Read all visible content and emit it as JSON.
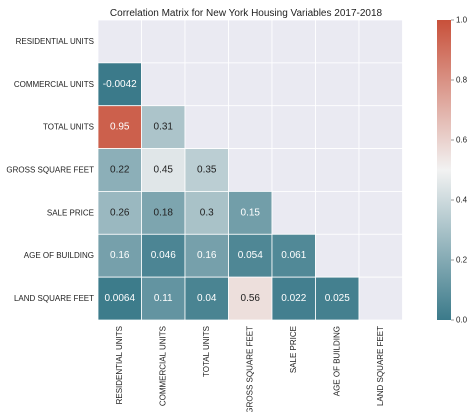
{
  "chart_data": {
    "type": "heatmap",
    "title": "Correlation Matrix for New York Housing Variables 2017-2018",
    "variables": [
      "RESIDENTIAL UNITS",
      "COMMERCIAL UNITS",
      "TOTAL UNITS",
      "GROSS SQUARE FEET",
      "SALE PRICE",
      "AGE OF BUILDING",
      "LAND SQUARE FEET"
    ],
    "lower_triangle": [
      [],
      [
        "-0.0042"
      ],
      [
        "0.95",
        "0.31"
      ],
      [
        "0.22",
        "0.45",
        "0.35"
      ],
      [
        "0.26",
        "0.18",
        "0.3",
        "0.15"
      ],
      [
        "0.16",
        "0.046",
        "0.16",
        "0.054",
        "0.061"
      ],
      [
        "0.0064",
        "0.11",
        "0.04",
        "0.56",
        "0.022",
        "0.025"
      ]
    ],
    "masked": "upper triangle and diagonal",
    "colorbar": {
      "min": 0.0,
      "max": 1.0,
      "ticks": [
        "0.0",
        "0.2",
        "0.4",
        "0.6",
        "0.8",
        "1.0"
      ],
      "colors": [
        "#3b7a8a",
        "#f2f2f2",
        "#c8503a"
      ]
    },
    "mask_color": "#eaeaf2"
  }
}
